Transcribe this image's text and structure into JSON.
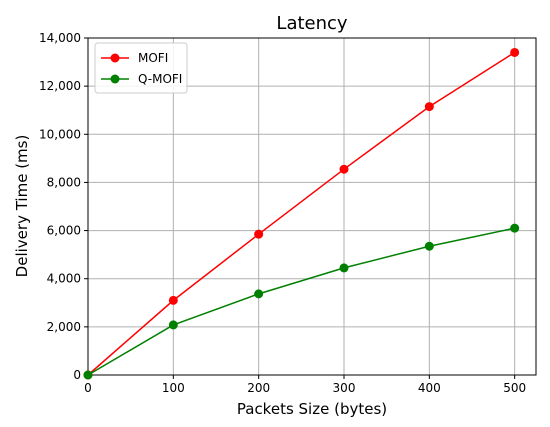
{
  "chart_data": {
    "type": "line",
    "title": "Latency",
    "xlabel": "Packets Size (bytes)",
    "ylabel": "Delivery Time (ms)",
    "x": [
      0,
      100,
      200,
      300,
      400,
      500
    ],
    "xlim": [
      0,
      525
    ],
    "ylim": [
      0,
      14000
    ],
    "x_ticks": [
      0,
      100,
      200,
      300,
      400,
      500
    ],
    "x_tick_labels": [
      "0",
      "100",
      "200",
      "300",
      "400",
      "500"
    ],
    "y_ticks": [
      0,
      2000,
      4000,
      6000,
      8000,
      10000,
      12000,
      14000
    ],
    "y_tick_labels": [
      "0",
      "2,000",
      "4,000",
      "6,000",
      "8,000",
      "10,000",
      "12,000",
      "14,000"
    ],
    "grid": true,
    "legend_position": "top-left",
    "series": [
      {
        "name": "MOFI",
        "color": "#ff0000",
        "values": [
          0,
          3100,
          5850,
          8550,
          11150,
          13400
        ]
      },
      {
        "name": "Q-MOFI",
        "color": "#008000",
        "values": [
          0,
          2080,
          3370,
          4450,
          5350,
          6100
        ]
      }
    ]
  }
}
